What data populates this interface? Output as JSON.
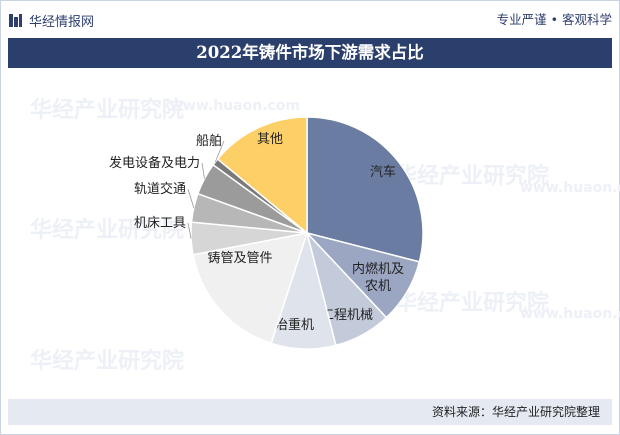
{
  "header": {
    "brand": "华经情报网",
    "logo_icon": "huajing-logo-icon",
    "slogan": "专业严谨 • 客观科学"
  },
  "watermark": {
    "text": "华经产业研究院",
    "sub": "www.huaon.com"
  },
  "footer": {
    "source": "资料来源：华经产业研究院整理"
  },
  "chart_data": {
    "type": "pie",
    "title": "2022年铸件市场下游需求占比",
    "start": "12 o'clock",
    "direction": "clockwise",
    "categories": [
      "汽车",
      "内燃机及农机",
      "工程机械",
      "矿冶重机",
      "铸管及管件",
      "机床工具",
      "轨道交通",
      "发电设备及电力",
      "船舶",
      "其他"
    ],
    "values": [
      29.0,
      9.0,
      8.0,
      9.0,
      17.0,
      4.5,
      4.0,
      4.5,
      1.0,
      14.0
    ],
    "unit": "%",
    "colors": [
      "#6b7ca2",
      "#9aa6c2",
      "#c3cad9",
      "#dfe3ec",
      "#f0f0f0",
      "#d6d6d6",
      "#b7b7b7",
      "#9b9b9b",
      "#7a7a7a",
      "#fcd066"
    ],
    "labels_inside": [
      "汽车",
      "内燃机及农机",
      "工程机械",
      "矿冶重机",
      "铸管及管件",
      "其他"
    ],
    "labels_outside": [
      "机床工具",
      "轨道交通",
      "发电设备及电力",
      "船舶"
    ]
  }
}
